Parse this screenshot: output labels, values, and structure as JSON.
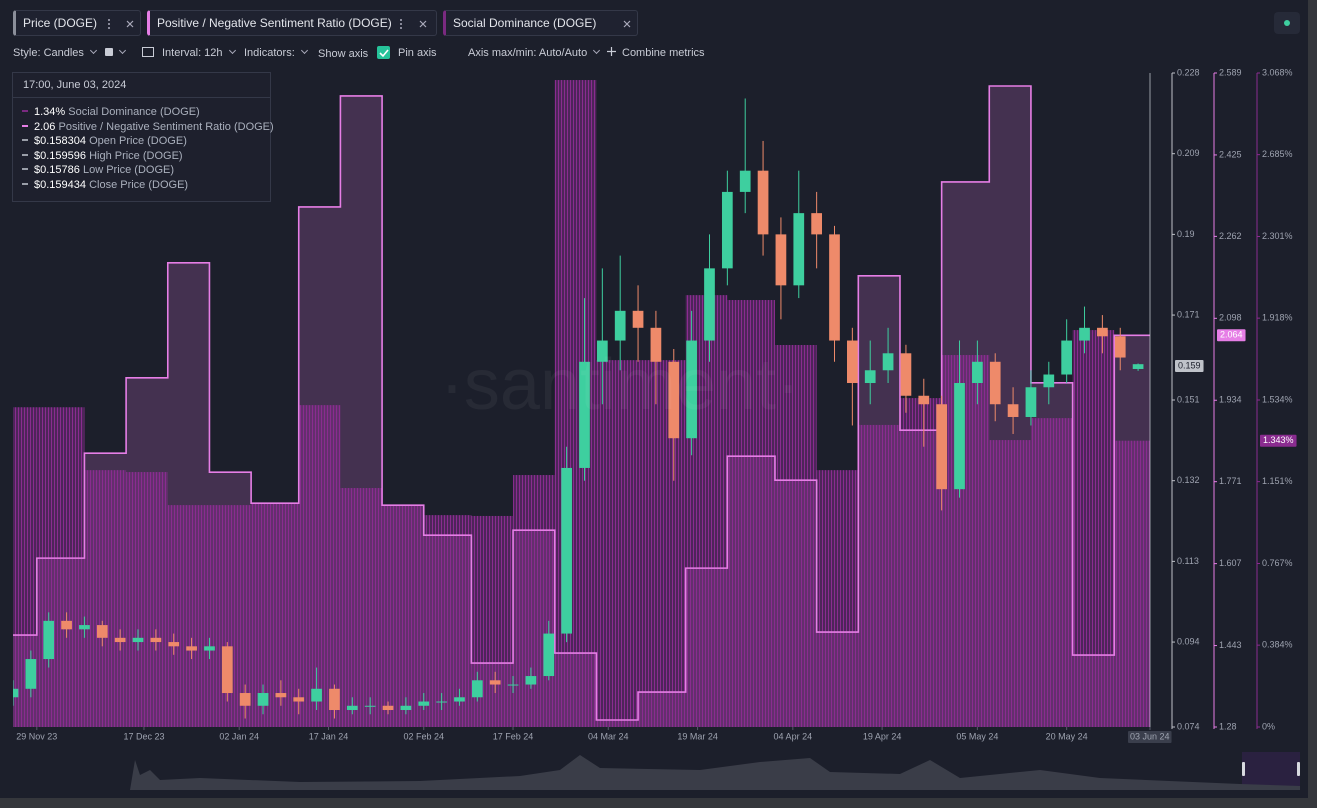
{
  "tabs": [
    "Price (DOGE)",
    "Positive / Negative Sentiment Ratio (DOGE)",
    "Social Dominance (DOGE)"
  ],
  "toolbar": {
    "style": "Style: Candles",
    "interval": "Interval: 12h",
    "indicators": "Indicators:",
    "show_axis": "Show axis",
    "pin_axis": "Pin axis",
    "axis_minmax": "Axis max/min: Auto/Auto",
    "combine": "Combine metrics"
  },
  "tooltip": {
    "title": "17:00, June 03, 2024",
    "rows": [
      {
        "value": "1.34%",
        "label": "Social Dominance (DOGE)",
        "color": "#7a2a80"
      },
      {
        "value": "2.06",
        "label": "Positive / Negative Sentiment Ratio (DOGE)",
        "color": "#e67ee6"
      },
      {
        "value": "$0.158304",
        "label": "Open Price (DOGE)",
        "color": "#9a9ea8"
      },
      {
        "value": "$0.159596",
        "label": "High Price (DOGE)",
        "color": "#9a9ea8"
      },
      {
        "value": "$0.15786",
        "label": "Low Price (DOGE)",
        "color": "#9a9ea8"
      },
      {
        "value": "$0.159434",
        "label": "Close Price (DOGE)",
        "color": "#9a9ea8"
      }
    ]
  },
  "watermark": "·santiment·",
  "chart_data": {
    "type": "candlestick",
    "name": "Price (DOGE)",
    "up_color": "#3ecf9f",
    "down_color": "#ee8a6a",
    "xlim": [
      "2023-11-25",
      "2024-06-03"
    ],
    "xticks": [
      {
        "value": "2023-11-29",
        "label": "29 Nov 23"
      },
      {
        "value": "2023-12-17",
        "label": "17 Dec 23"
      },
      {
        "value": "2024-01-02",
        "label": "02 Jan 24"
      },
      {
        "value": "2024-01-17",
        "label": "17 Jan 24"
      },
      {
        "value": "2024-02-02",
        "label": "02 Feb 24"
      },
      {
        "value": "2024-02-17",
        "label": "17 Feb 24"
      },
      {
        "value": "2024-03-04",
        "label": "04 Mar 24"
      },
      {
        "value": "2024-03-19",
        "label": "19 Mar 24"
      },
      {
        "value": "2024-04-04",
        "label": "04 Apr 24"
      },
      {
        "value": "2024-04-19",
        "label": "19 Apr 24"
      },
      {
        "value": "2024-05-05",
        "label": "05 May 24"
      },
      {
        "value": "2024-05-20",
        "label": "20 May 24"
      },
      {
        "value": "2024-06-03",
        "label": "03 Jun 24"
      }
    ],
    "x": [
      "2023-11-25",
      "2023-11-28",
      "2023-12-01",
      "2023-12-04",
      "2023-12-07",
      "2023-12-10",
      "2023-12-13",
      "2023-12-16",
      "2023-12-19",
      "2023-12-22",
      "2023-12-25",
      "2023-12-28",
      "2023-12-31",
      "2024-01-03",
      "2024-01-06",
      "2024-01-09",
      "2024-01-12",
      "2024-01-15",
      "2024-01-18",
      "2024-01-21",
      "2024-01-24",
      "2024-01-27",
      "2024-01-30",
      "2024-02-02",
      "2024-02-05",
      "2024-02-08",
      "2024-02-11",
      "2024-02-14",
      "2024-02-17",
      "2024-02-20",
      "2024-02-23",
      "2024-02-26",
      "2024-02-29",
      "2024-03-03",
      "2024-03-06",
      "2024-03-09",
      "2024-03-12",
      "2024-03-15",
      "2024-03-18",
      "2024-03-21",
      "2024-03-24",
      "2024-03-27",
      "2024-03-30",
      "2024-04-02",
      "2024-04-05",
      "2024-04-08",
      "2024-04-11",
      "2024-04-14",
      "2024-04-17",
      "2024-04-20",
      "2024-04-23",
      "2024-04-26",
      "2024-04-29",
      "2024-05-02",
      "2024-05-05",
      "2024-05-08",
      "2024-05-11",
      "2024-05-14",
      "2024-05-17",
      "2024-05-20",
      "2024-05-23",
      "2024-05-26",
      "2024-05-29",
      "2024-06-01"
    ],
    "open": [
      0.081,
      0.083,
      0.09,
      0.099,
      0.097,
      0.098,
      0.095,
      0.094,
      0.095,
      0.094,
      0.093,
      0.092,
      0.093,
      0.082,
      0.079,
      0.082,
      0.081,
      0.08,
      0.083,
      0.078,
      0.079,
      0.079,
      0.078,
      0.079,
      0.08,
      0.08,
      0.081,
      0.085,
      0.084,
      0.084,
      0.086,
      0.096,
      0.135,
      0.16,
      0.165,
      0.172,
      0.168,
      0.16,
      0.142,
      0.165,
      0.182,
      0.2,
      0.205,
      0.19,
      0.178,
      0.195,
      0.19,
      0.165,
      0.155,
      0.158,
      0.162,
      0.152,
      0.15,
      0.13,
      0.155,
      0.16,
      0.15,
      0.147,
      0.154,
      0.157,
      0.165,
      0.168,
      0.166,
      0.158304
    ],
    "high": [
      0.085,
      0.092,
      0.101,
      0.101,
      0.1,
      0.099,
      0.097,
      0.097,
      0.097,
      0.096,
      0.095,
      0.095,
      0.094,
      0.084,
      0.084,
      0.085,
      0.083,
      0.088,
      0.084,
      0.081,
      0.081,
      0.08,
      0.081,
      0.082,
      0.082,
      0.083,
      0.087,
      0.087,
      0.086,
      0.088,
      0.099,
      0.14,
      0.175,
      0.182,
      0.185,
      0.178,
      0.172,
      0.163,
      0.172,
      0.19,
      0.205,
      0.222,
      0.212,
      0.194,
      0.205,
      0.2,
      0.192,
      0.168,
      0.165,
      0.168,
      0.164,
      0.156,
      0.152,
      0.165,
      0.165,
      0.162,
      0.154,
      0.158,
      0.16,
      0.17,
      0.173,
      0.171,
      0.168,
      0.159596
    ],
    "low": [
      0.079,
      0.081,
      0.088,
      0.095,
      0.095,
      0.093,
      0.092,
      0.092,
      0.092,
      0.091,
      0.09,
      0.09,
      0.08,
      0.076,
      0.077,
      0.079,
      0.077,
      0.078,
      0.076,
      0.077,
      0.077,
      0.077,
      0.077,
      0.078,
      0.078,
      0.079,
      0.08,
      0.082,
      0.082,
      0.083,
      0.085,
      0.094,
      0.132,
      0.15,
      0.158,
      0.16,
      0.15,
      0.132,
      0.138,
      0.16,
      0.178,
      0.195,
      0.185,
      0.17,
      0.175,
      0.182,
      0.16,
      0.145,
      0.15,
      0.155,
      0.148,
      0.14,
      0.125,
      0.128,
      0.15,
      0.146,
      0.143,
      0.145,
      0.15,
      0.155,
      0.162,
      0.162,
      0.158,
      0.15786
    ],
    "close": [
      0.083,
      0.09,
      0.099,
      0.097,
      0.098,
      0.095,
      0.094,
      0.095,
      0.094,
      0.093,
      0.092,
      0.093,
      0.082,
      0.079,
      0.082,
      0.081,
      0.08,
      0.083,
      0.078,
      0.079,
      0.079,
      0.078,
      0.079,
      0.08,
      0.08,
      0.081,
      0.085,
      0.084,
      0.084,
      0.086,
      0.096,
      0.135,
      0.16,
      0.165,
      0.172,
      0.168,
      0.16,
      0.142,
      0.165,
      0.182,
      0.2,
      0.205,
      0.19,
      0.178,
      0.195,
      0.19,
      0.165,
      0.155,
      0.158,
      0.162,
      0.152,
      0.15,
      0.13,
      0.155,
      0.16,
      0.15,
      0.147,
      0.154,
      0.157,
      0.165,
      0.168,
      0.166,
      0.161,
      0.159434
    ],
    "ylim": [
      0.074,
      0.228
    ],
    "yticks": [
      0.074,
      0.094,
      0.113,
      0.132,
      0.151,
      0.171,
      0.19,
      0.209,
      0.228
    ],
    "y_marker": 0.159,
    "series": [
      {
        "name": "Positive / Negative Sentiment Ratio (DOGE)",
        "type": "step",
        "axis": "y2",
        "color": "#e67ee6",
        "x": [
          "2023-11-22",
          "2023-11-29",
          "2023-12-07",
          "2023-12-14",
          "2023-12-21",
          "2023-12-28",
          "2024-01-04",
          "2024-01-12",
          "2024-01-19",
          "2024-01-26",
          "2024-02-02",
          "2024-02-10",
          "2024-02-17",
          "2024-02-24",
          "2024-03-02",
          "2024-03-09",
          "2024-03-17",
          "2024-03-24",
          "2024-04-01",
          "2024-04-08",
          "2024-04-15",
          "2024-04-22",
          "2024-04-29",
          "2024-05-07",
          "2024-05-14",
          "2024-05-21",
          "2024-05-28"
        ],
        "values": [
          1.464,
          1.618,
          1.828,
          1.979,
          2.209,
          1.79,
          1.728,
          2.321,
          2.543,
          1.724,
          1.664,
          1.408,
          1.674,
          1.428,
          1.294,
          1.35,
          1.598,
          1.822,
          1.774,
          1.47,
          2.183,
          1.874,
          2.371,
          2.563,
          1.969,
          1.424,
          2.064
        ]
      },
      {
        "name": "Social Dominance (DOGE)",
        "type": "bar",
        "axis": "y3",
        "color": "#8a2c90",
        "x": [
          "2023-11-22",
          "2023-11-29",
          "2023-12-07",
          "2023-12-14",
          "2023-12-21",
          "2023-12-28",
          "2024-01-04",
          "2024-01-12",
          "2024-01-19",
          "2024-01-26",
          "2024-02-02",
          "2024-02-10",
          "2024-02-17",
          "2024-02-24",
          "2024-03-02",
          "2024-03-09",
          "2024-03-17",
          "2024-03-24",
          "2024-04-01",
          "2024-04-08",
          "2024-04-15",
          "2024-04-22",
          "2024-04-29",
          "2024-05-07",
          "2024-05-14",
          "2024-05-21",
          "2024-05-28"
        ],
        "values": [
          1.5,
          1.5,
          1.205,
          1.196,
          1.041,
          1.041,
          1.051,
          1.51,
          1.121,
          1.041,
          0.994,
          0.99,
          1.182,
          3.035,
          1.721,
          1.721,
          2.026,
          2.003,
          1.792,
          1.205,
          1.417,
          1.543,
          1.745,
          1.346,
          1.449,
          1.862,
          1.343
        ]
      }
    ],
    "y2lim": [
      1.28,
      2.589
    ],
    "y2ticks": [
      1.28,
      1.443,
      1.607,
      1.771,
      1.934,
      2.098,
      2.262,
      2.425,
      2.589
    ],
    "y2_marker": 2.064,
    "y3lim": [
      0,
      3.068
    ],
    "y3ticks": [
      {
        "value": 0,
        "label": "0%"
      },
      {
        "value": 0.384,
        "label": "0.384%"
      },
      {
        "value": 0.767,
        "label": "0.767%"
      },
      {
        "value": 1.151,
        "label": "1.151%"
      },
      {
        "value": 1.534,
        "label": "1.534%"
      },
      {
        "value": 1.918,
        "label": "1.918%"
      },
      {
        "value": 2.301,
        "label": "2.301%"
      },
      {
        "value": 2.685,
        "label": "2.685%"
      },
      {
        "value": 3.068,
        "label": "3.068%"
      }
    ],
    "y3_marker": {
      "value": 1.343,
      "label": "1.343%"
    }
  }
}
